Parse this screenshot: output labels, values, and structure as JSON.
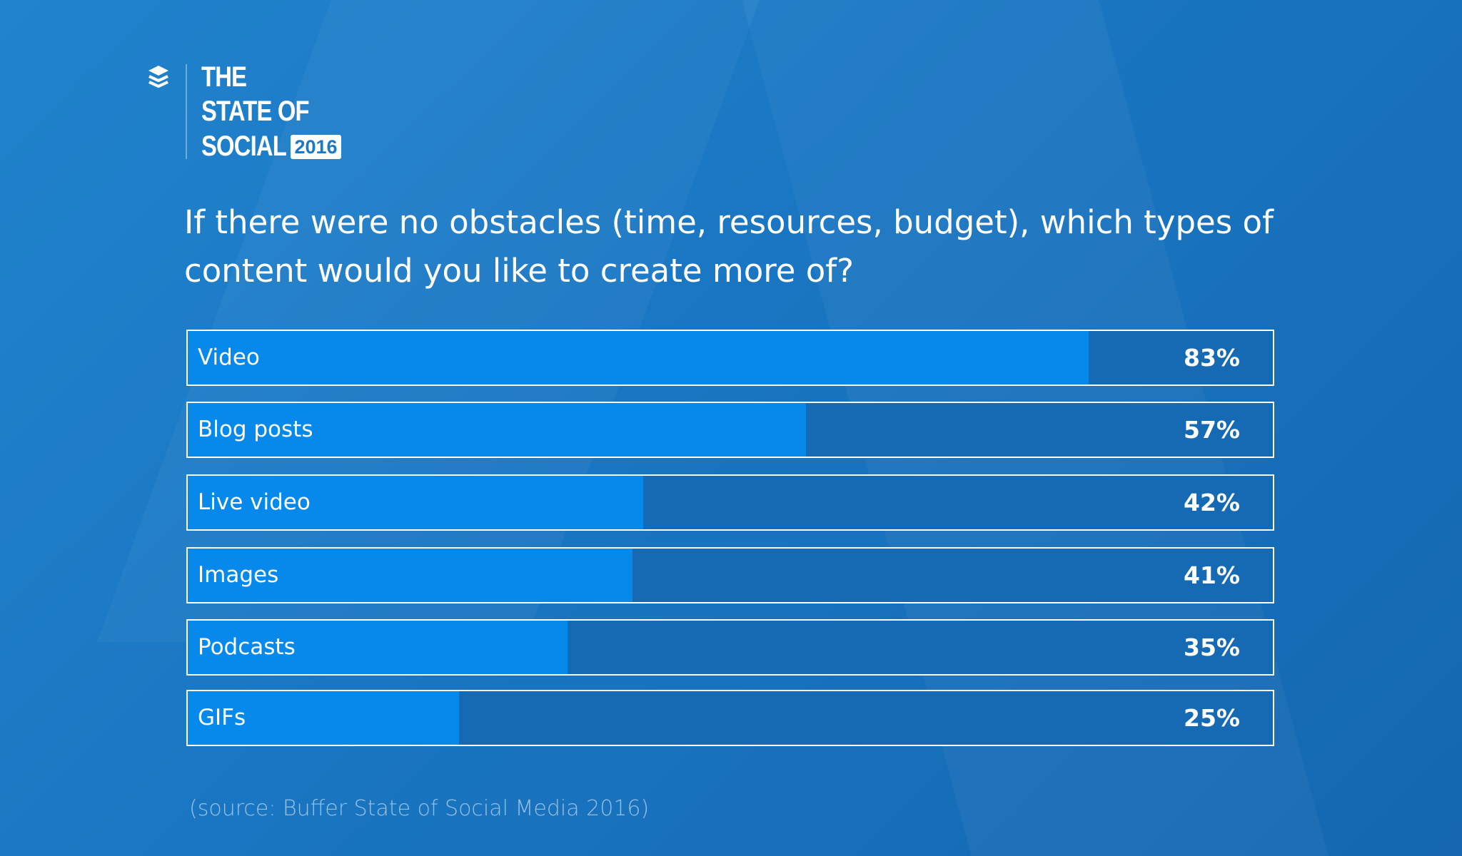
{
  "brand": {
    "line1": "THE",
    "line2": "STATE OF",
    "line3": "SOCIAL",
    "year": "2016",
    "logo_icon": "buffer-stack-icon"
  },
  "question": "If there were no obstacles (time, resources, budget), which types of content would you like to create more of?",
  "source": "(source: Buffer State of Social Media 2016)",
  "colors": {
    "background": "#1a76c2",
    "fill": "#0789eb",
    "track": "#1669b3",
    "border": "#ffffff"
  },
  "chart_data": {
    "type": "bar",
    "orientation": "horizontal",
    "title": "If there were no obstacles (time, resources, budget), which types of content would you like to create more of?",
    "categories": [
      "Video",
      "Blog posts",
      "Live video",
      "Images",
      "Podcasts",
      "GIFs"
    ],
    "values": [
      83,
      57,
      42,
      41,
      35,
      25
    ],
    "labels": [
      "83%",
      "57%",
      "42%",
      "41%",
      "35%",
      "25%"
    ],
    "xlim": [
      0,
      100
    ],
    "grid": false
  }
}
